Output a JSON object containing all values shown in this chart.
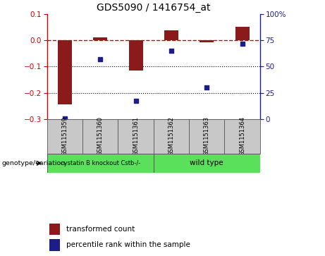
{
  "title": "GDS5090 / 1416754_at",
  "samples": [
    "GSM1151359",
    "GSM1151360",
    "GSM1151361",
    "GSM1151362",
    "GSM1151363",
    "GSM1151364"
  ],
  "bar_values": [
    -0.245,
    0.012,
    -0.115,
    0.038,
    -0.008,
    0.052
  ],
  "percentile_values": [
    0.5,
    57,
    17,
    65,
    30,
    72
  ],
  "ylim_left": [
    -0.3,
    0.1
  ],
  "ylim_right": [
    0,
    100
  ],
  "yticks_left": [
    -0.3,
    -0.2,
    -0.1,
    0.0,
    0.1
  ],
  "yticks_right": [
    0,
    25,
    50,
    75,
    100
  ],
  "bar_color": "#8B1A1A",
  "dot_color": "#1C1C8B",
  "dashed_line_color": "#CC0000",
  "dotted_line_color": "#000000",
  "group1_label": "cystatin B knockout Cstb-/-",
  "group2_label": "wild type",
  "group_color": "#5AE05A",
  "genotype_label": "genotype/variation",
  "legend_bar_label": "transformed count",
  "legend_dot_label": "percentile rank within the sample",
  "background_color": "#ffffff",
  "label_area_bg": "#c8c8c8",
  "bar_width": 0.4
}
